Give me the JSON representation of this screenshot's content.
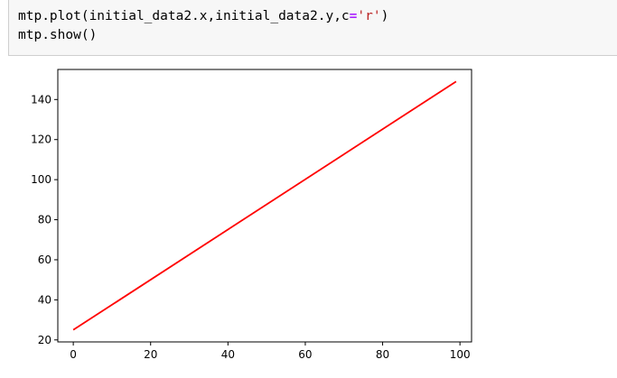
{
  "code_cell": {
    "line1": {
      "prefix": "mtp.plot(initial_data2.x,initial_data2.y,c",
      "op": "=",
      "str": "'r'",
      "suffix": ")"
    },
    "line2": "mtp.show()"
  },
  "chart_data": {
    "type": "line",
    "title": "",
    "xlabel": "",
    "ylabel": "",
    "xlim": [
      -4,
      103
    ],
    "ylim": [
      19,
      155
    ],
    "xticks": [
      0,
      20,
      40,
      60,
      80,
      100
    ],
    "yticks": [
      20,
      40,
      60,
      80,
      100,
      120,
      140
    ],
    "xtick_labels": [
      "0",
      "20",
      "40",
      "60",
      "80",
      "100"
    ],
    "ytick_labels": [
      "20",
      "40",
      "60",
      "80",
      "100",
      "120",
      "140"
    ],
    "grid": false,
    "series": [
      {
        "color": "#ff0000",
        "x": [
          0,
          99
        ],
        "y": [
          25,
          149
        ]
      }
    ]
  }
}
